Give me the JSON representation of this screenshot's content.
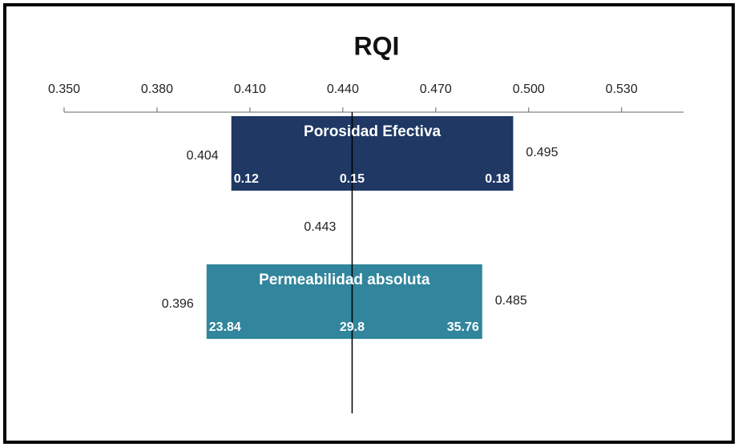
{
  "chart_data": {
    "type": "tornado",
    "title": "RQI",
    "xlim": [
      0.35,
      0.55
    ],
    "xticks": [
      {
        "value": 0.35,
        "label": "0.350"
      },
      {
        "value": 0.38,
        "label": "0.380"
      },
      {
        "value": 0.41,
        "label": "0.410"
      },
      {
        "value": 0.44,
        "label": "0.440"
      },
      {
        "value": 0.47,
        "label": "0.470"
      },
      {
        "value": 0.5,
        "label": "0.500"
      },
      {
        "value": 0.53,
        "label": "0.530"
      }
    ],
    "base": 0.443,
    "bars": [
      {
        "name": "Porosidad Efectiva",
        "color": "#1f3864",
        "low": 0.404,
        "high": 0.495,
        "input_low": 0.12,
        "input_base": 0.15,
        "input_high": 0.18
      },
      {
        "name": "Permeabilidad absoluta",
        "color": "#31859c",
        "low": 0.396,
        "high": 0.485,
        "input_low": 23.84,
        "input_base": 29.8,
        "input_high": 35.76
      }
    ]
  }
}
